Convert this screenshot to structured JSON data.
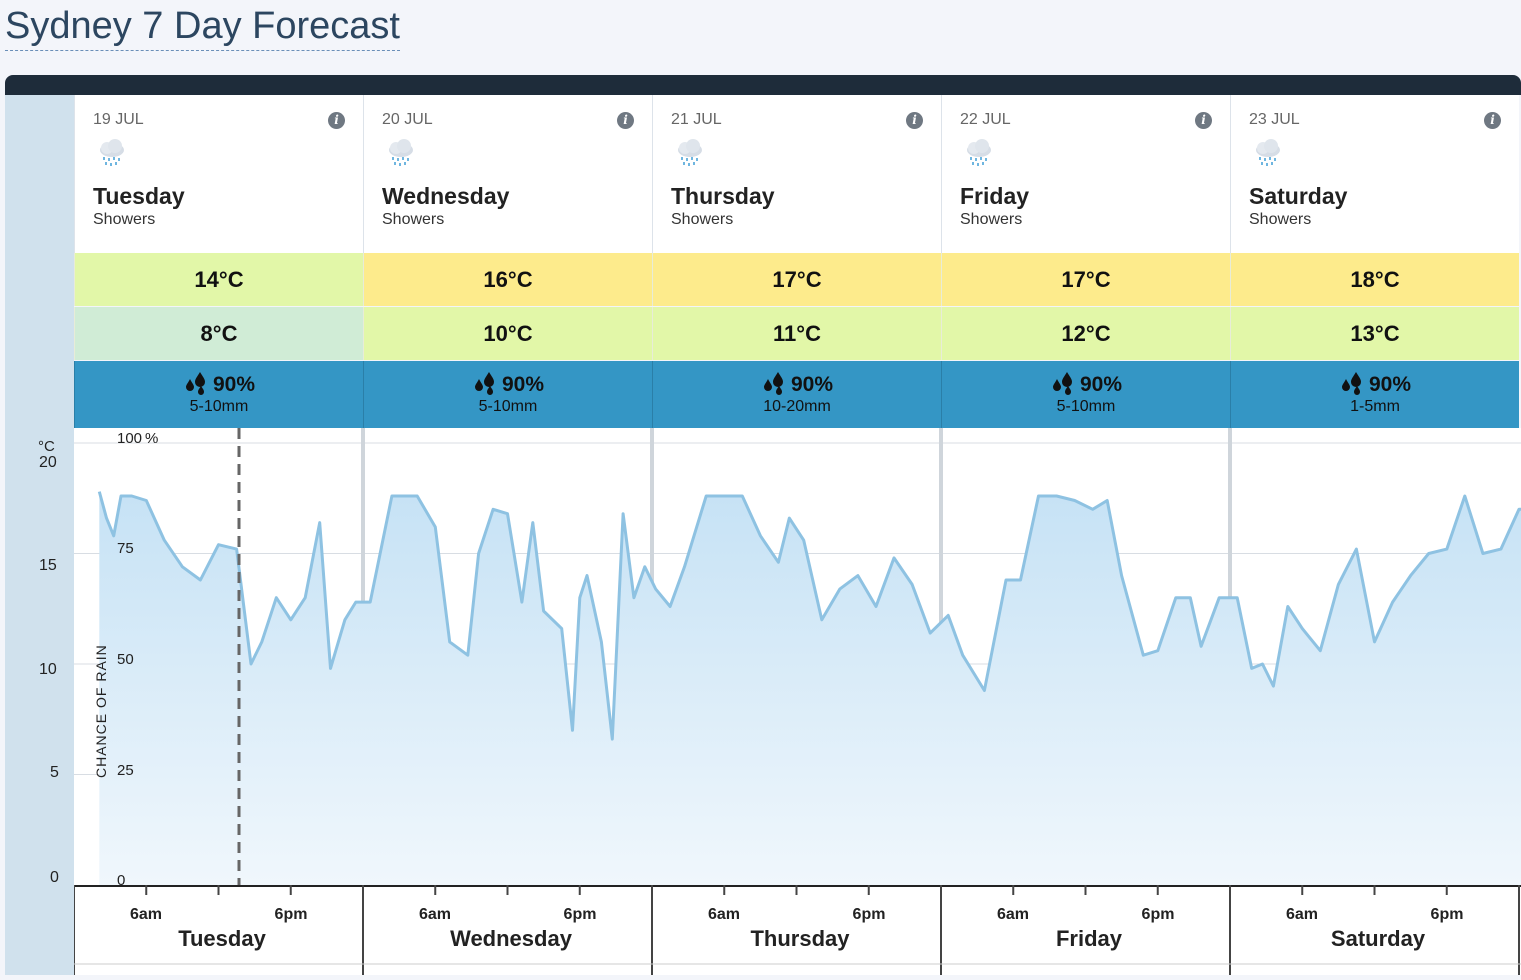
{
  "page": {
    "title": "Sydney 7 Day Forecast"
  },
  "days": [
    {
      "date": "19 JUL",
      "name": "Tuesday",
      "condition": "Showers",
      "max": "14°C",
      "min": "8°C",
      "rain_chance": "90%",
      "rain_amount": "5-10mm",
      "max_color": "#e2f7a8",
      "min_color": "#d0ecd6"
    },
    {
      "date": "20 JUL",
      "name": "Wednesday",
      "condition": "Showers",
      "max": "16°C",
      "min": "10°C",
      "rain_chance": "90%",
      "rain_amount": "5-10mm",
      "max_color": "#fdeb8c",
      "min_color": "#e2f7a8"
    },
    {
      "date": "21 JUL",
      "name": "Thursday",
      "condition": "Showers",
      "max": "17°C",
      "min": "11°C",
      "rain_chance": "90%",
      "rain_amount": "10-20mm",
      "max_color": "#fdeb8c",
      "min_color": "#e2f7a8"
    },
    {
      "date": "22 JUL",
      "name": "Friday",
      "condition": "Showers",
      "max": "17°C",
      "min": "12°C",
      "rain_chance": "90%",
      "rain_amount": "5-10mm",
      "max_color": "#fdeb8c",
      "min_color": "#e2f7a8"
    },
    {
      "date": "23 JUL",
      "name": "Saturday",
      "condition": "Showers",
      "max": "18°C",
      "min": "13°C",
      "rain_chance": "90%",
      "rain_amount": "1-5mm",
      "max_color": "#fdeb8c",
      "min_color": "#e2f7a8"
    }
  ],
  "icons": {
    "weather": "rain-cloud-icon",
    "info": "info-icon",
    "rain": "rain-drops-icon"
  },
  "info_glyph": "i",
  "chart_data": {
    "type": "area",
    "temp_axis": {
      "unit": "°C",
      "ticks": [
        "20",
        "15",
        "10",
        "5",
        "0"
      ]
    },
    "rain_axis": {
      "label": "CHANCE OF RAIN",
      "ticks": [
        "100",
        "75",
        "50",
        "25",
        "0"
      ],
      "unit": "%"
    },
    "x_labels": [
      "6am",
      "6pm"
    ],
    "day_labels": [
      "Tuesday",
      "Wednesday",
      "Thursday",
      "Friday",
      "Saturday"
    ],
    "now_marker": true,
    "series_color": "#8ec2e2",
    "values": [
      [
        0.35,
        89
      ],
      [
        0.45,
        83
      ],
      [
        0.55,
        79
      ],
      [
        0.65,
        88
      ],
      [
        0.8,
        88
      ],
      [
        1.0,
        87
      ],
      [
        1.25,
        78
      ],
      [
        1.5,
        72
      ],
      [
        1.75,
        69
      ],
      [
        2.0,
        77
      ],
      [
        2.25,
        76
      ],
      [
        2.45,
        50
      ],
      [
        2.6,
        55
      ],
      [
        2.8,
        65
      ],
      [
        3.0,
        60
      ],
      [
        3.2,
        65
      ],
      [
        3.4,
        82
      ],
      [
        3.55,
        49
      ],
      [
        3.75,
        60
      ],
      [
        3.9,
        64
      ],
      [
        4.1,
        64
      ],
      [
        4.4,
        88
      ],
      [
        4.75,
        88
      ],
      [
        5.0,
        81
      ],
      [
        5.2,
        55
      ],
      [
        5.45,
        52
      ],
      [
        5.6,
        75
      ],
      [
        5.8,
        85
      ],
      [
        6.0,
        84
      ],
      [
        6.2,
        64
      ],
      [
        6.35,
        82
      ],
      [
        6.5,
        62
      ],
      [
        6.75,
        58
      ],
      [
        6.9,
        35
      ],
      [
        7.0,
        65
      ],
      [
        7.1,
        70
      ],
      [
        7.3,
        55
      ],
      [
        7.45,
        33
      ],
      [
        7.6,
        84
      ],
      [
        7.75,
        65
      ],
      [
        7.9,
        72
      ],
      [
        8.05,
        67
      ],
      [
        8.25,
        63
      ],
      [
        8.45,
        72
      ],
      [
        8.75,
        88
      ],
      [
        9.25,
        88
      ],
      [
        9.5,
        79
      ],
      [
        9.75,
        73
      ],
      [
        9.9,
        83
      ],
      [
        10.1,
        78
      ],
      [
        10.35,
        60
      ],
      [
        10.6,
        67
      ],
      [
        10.85,
        70
      ],
      [
        11.1,
        63
      ],
      [
        11.35,
        74
      ],
      [
        11.6,
        68
      ],
      [
        11.85,
        57
      ],
      [
        12.1,
        61
      ],
      [
        12.3,
        52
      ],
      [
        12.6,
        44
      ],
      [
        12.9,
        69
      ],
      [
        13.1,
        69
      ],
      [
        13.35,
        88
      ],
      [
        13.6,
        88
      ],
      [
        13.85,
        87
      ],
      [
        14.1,
        85
      ],
      [
        14.3,
        87
      ],
      [
        14.5,
        70
      ],
      [
        14.8,
        52
      ],
      [
        15.0,
        53
      ],
      [
        15.25,
        65
      ],
      [
        15.45,
        65
      ],
      [
        15.6,
        54
      ],
      [
        15.85,
        65
      ],
      [
        16.1,
        65
      ],
      [
        16.3,
        49
      ],
      [
        16.45,
        50
      ],
      [
        16.6,
        45
      ],
      [
        16.8,
        63
      ],
      [
        17.0,
        58
      ],
      [
        17.25,
        53
      ],
      [
        17.5,
        68
      ],
      [
        17.75,
        76
      ],
      [
        18.0,
        55
      ],
      [
        18.25,
        64
      ],
      [
        18.5,
        70
      ],
      [
        18.75,
        75
      ],
      [
        19.0,
        76
      ],
      [
        19.25,
        88
      ],
      [
        19.5,
        75
      ],
      [
        19.75,
        76
      ],
      [
        20.0,
        85
      ],
      [
        20.3,
        85
      ]
    ]
  }
}
